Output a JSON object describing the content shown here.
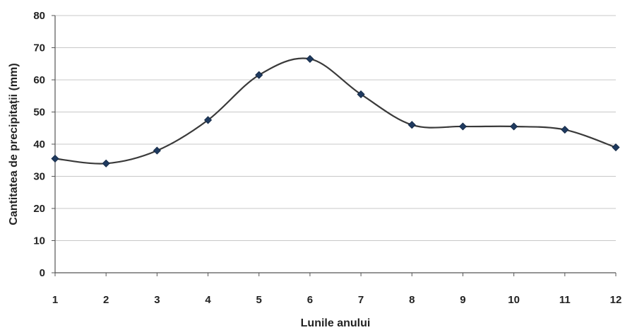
{
  "chart_data": {
    "type": "line",
    "x": [
      1,
      2,
      3,
      4,
      5,
      6,
      7,
      8,
      9,
      10,
      11,
      12
    ],
    "series": [
      {
        "values": [
          35.5,
          34,
          38,
          47.5,
          61.5,
          66.5,
          55.5,
          46,
          45.5,
          45.5,
          44.5,
          39
        ]
      }
    ],
    "title": "",
    "xlabel": "Lunile anului",
    "ylabel": "Cantitatea de precipitații (mm)",
    "ylim": [
      0,
      80
    ],
    "yticks": [
      0,
      10,
      20,
      30,
      40,
      50,
      60,
      70,
      80
    ],
    "xticks": [
      1,
      2,
      3,
      4,
      5,
      6,
      7,
      8,
      9,
      10,
      11,
      12
    ],
    "grid": "horizontal",
    "smooth": true,
    "marker": "diamond",
    "legend": "none",
    "colors": {
      "line": "#3a3a3a",
      "marker": "#1f3a5f",
      "grid": "#c8c8c8",
      "axis": "#555555"
    }
  }
}
